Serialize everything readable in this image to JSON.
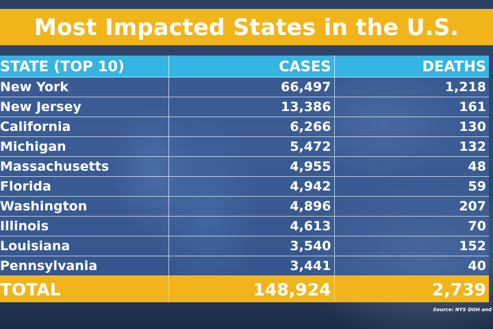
{
  "title": "Most Impacted States in the U.S.",
  "table": {
    "headers": [
      "STATE (TOP 10)",
      "CASES",
      "DEATHS"
    ],
    "rows": [
      [
        "New York",
        "66,497",
        "1,218"
      ],
      [
        "New Jersey",
        "13,386",
        "161"
      ],
      [
        "California",
        "6,266",
        "130"
      ],
      [
        "Michigan",
        "5,472",
        "132"
      ],
      [
        "Massachusetts",
        "4,955",
        "48"
      ],
      [
        "Florida",
        "4,942",
        "59"
      ],
      [
        "Washington",
        "4,896",
        "207"
      ],
      [
        "Illinois",
        "4,613",
        "70"
      ],
      [
        "Louisiana",
        "3,540",
        "152"
      ],
      [
        "Pennsylvania",
        "3,441",
        "40"
      ]
    ],
    "total": [
      "TOTAL",
      "148,924",
      "2,739"
    ]
  },
  "source": "Source: NYS DOH and",
  "colors": {
    "title_bar": "#f1b51b",
    "header_row": "#36b4e2",
    "body_rows": "#4068aa",
    "total_row": "#f1b51b",
    "text": "#ffffff"
  }
}
